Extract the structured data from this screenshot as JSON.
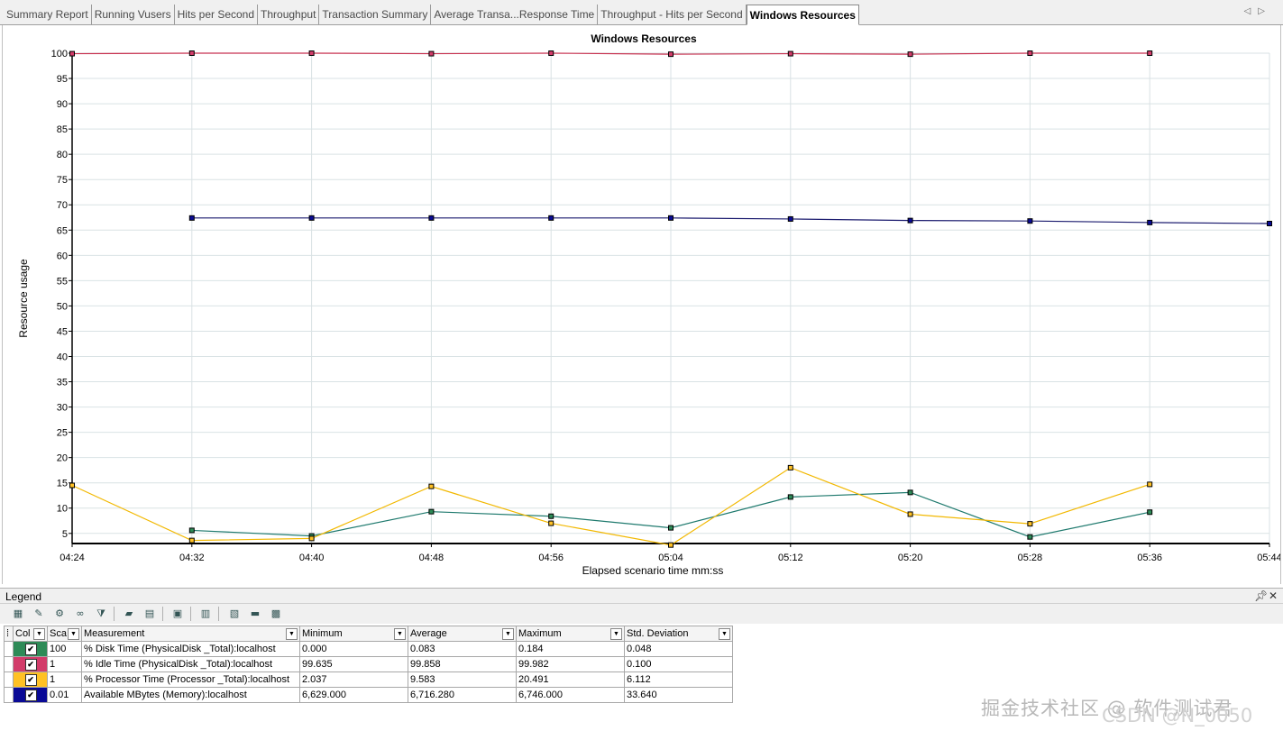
{
  "tabs": [
    {
      "label": "Summary Report",
      "active": false
    },
    {
      "label": "Running Vusers",
      "active": false
    },
    {
      "label": "Hits per Second",
      "active": false
    },
    {
      "label": "Throughput",
      "active": false
    },
    {
      "label": "Transaction Summary",
      "active": false
    },
    {
      "label": "Average Transa...Response Time",
      "active": false
    },
    {
      "label": "Throughput - Hits per Second",
      "active": false
    },
    {
      "label": "Windows Resources",
      "active": true
    }
  ],
  "tab_nav": {
    "prev": "◁",
    "next": "▷"
  },
  "chart_data": {
    "type": "line",
    "title": "Windows Resources",
    "xlabel": "Elapsed scenario time mm:ss",
    "ylabel": "Resource usage",
    "x_ticks": [
      "04:24",
      "04:32",
      "04:40",
      "04:48",
      "04:56",
      "05:04",
      "05:12",
      "05:20",
      "05:28",
      "05:36",
      "05:44"
    ],
    "xlim": [
      "04:24",
      "05:44"
    ],
    "ylim": [
      3,
      100
    ],
    "y_ticks": [
      5,
      10,
      15,
      20,
      25,
      30,
      35,
      40,
      45,
      50,
      55,
      60,
      65,
      70,
      75,
      80,
      85,
      90,
      95,
      100
    ],
    "grid": true,
    "series": [
      {
        "name": "% Disk Time (PhysicalDisk _Total):localhost",
        "color": "#2e8b57",
        "line_color": "#1f7a6e",
        "x": [
          "04:32",
          "04:40",
          "04:48",
          "04:56",
          "05:04",
          "05:12",
          "05:20",
          "05:28",
          "05:36"
        ],
        "y": [
          5.6,
          4.5,
          9.3,
          8.4,
          6.1,
          12.2,
          13.1,
          4.3,
          9.2
        ]
      },
      {
        "name": "% Idle Time (PhysicalDisk _Total):localhost",
        "color": "#d23c6a",
        "line_color": "#c83250",
        "x": [
          "04:24",
          "04:32",
          "04:40",
          "04:48",
          "04:56",
          "05:04",
          "05:12",
          "05:20",
          "05:28",
          "05:36"
        ],
        "y": [
          99.9,
          100,
          100,
          99.9,
          100,
          99.8,
          99.9,
          99.8,
          100,
          100
        ]
      },
      {
        "name": "% Processor Time (Processor _Total):localhost",
        "color": "#ffc125",
        "line_color": "#f2b800",
        "x": [
          "04:24",
          "04:32",
          "04:40",
          "04:48",
          "04:56",
          "05:04",
          "05:12",
          "05:20",
          "05:28",
          "05:36"
        ],
        "y": [
          14.5,
          3.6,
          4.0,
          14.3,
          7.0,
          2.7,
          18.0,
          8.8,
          6.9,
          14.7
        ]
      },
      {
        "name": "Available MBytes (Memory):localhost",
        "color": "#0a0a96",
        "line_color": "#1a1a6e",
        "x": [
          "04:32",
          "04:40",
          "04:48",
          "04:56",
          "05:04",
          "05:12",
          "05:20",
          "05:28",
          "05:36",
          "05:44"
        ],
        "y": [
          67.4,
          67.4,
          67.4,
          67.4,
          67.4,
          67.2,
          66.9,
          66.8,
          66.5,
          66.3
        ]
      }
    ]
  },
  "legend": {
    "title": "Legend",
    "columns": [
      "Col",
      "Sca",
      "Measurement",
      "Minimum",
      "Average",
      "Maximum",
      "Std. Deviation"
    ],
    "rows": [
      {
        "color": "#2e8b57",
        "checked": "✔",
        "scale": "100",
        "measurement": "% Disk Time (PhysicalDisk _Total):localhost",
        "minimum": "0.000",
        "average": "0.083",
        "maximum": "0.184",
        "std": "0.048"
      },
      {
        "color": "#d23c6a",
        "checked": "✔",
        "scale": "1",
        "measurement": "% Idle Time (PhysicalDisk _Total):localhost",
        "minimum": "99.635",
        "average": "99.858",
        "maximum": "99.982",
        "std": "0.100"
      },
      {
        "color": "#ffc125",
        "checked": "✔",
        "scale": "1",
        "measurement": "% Processor Time (Processor _Total):localhost",
        "minimum": "2.037",
        "average": "9.583",
        "maximum": "20.491",
        "std": "6.112"
      },
      {
        "color": "#0a0a96",
        "checked": "✔",
        "scale": "0.01",
        "measurement": "Available MBytes (Memory):localhost",
        "minimum": "6,629.000",
        "average": "6,716.280",
        "maximum": "6,746.000",
        "std": "33.640"
      }
    ]
  },
  "watermark": {
    "text": "掘金技术社区 @ 软件测试君",
    "text2": "CSDN @N_0050"
  }
}
